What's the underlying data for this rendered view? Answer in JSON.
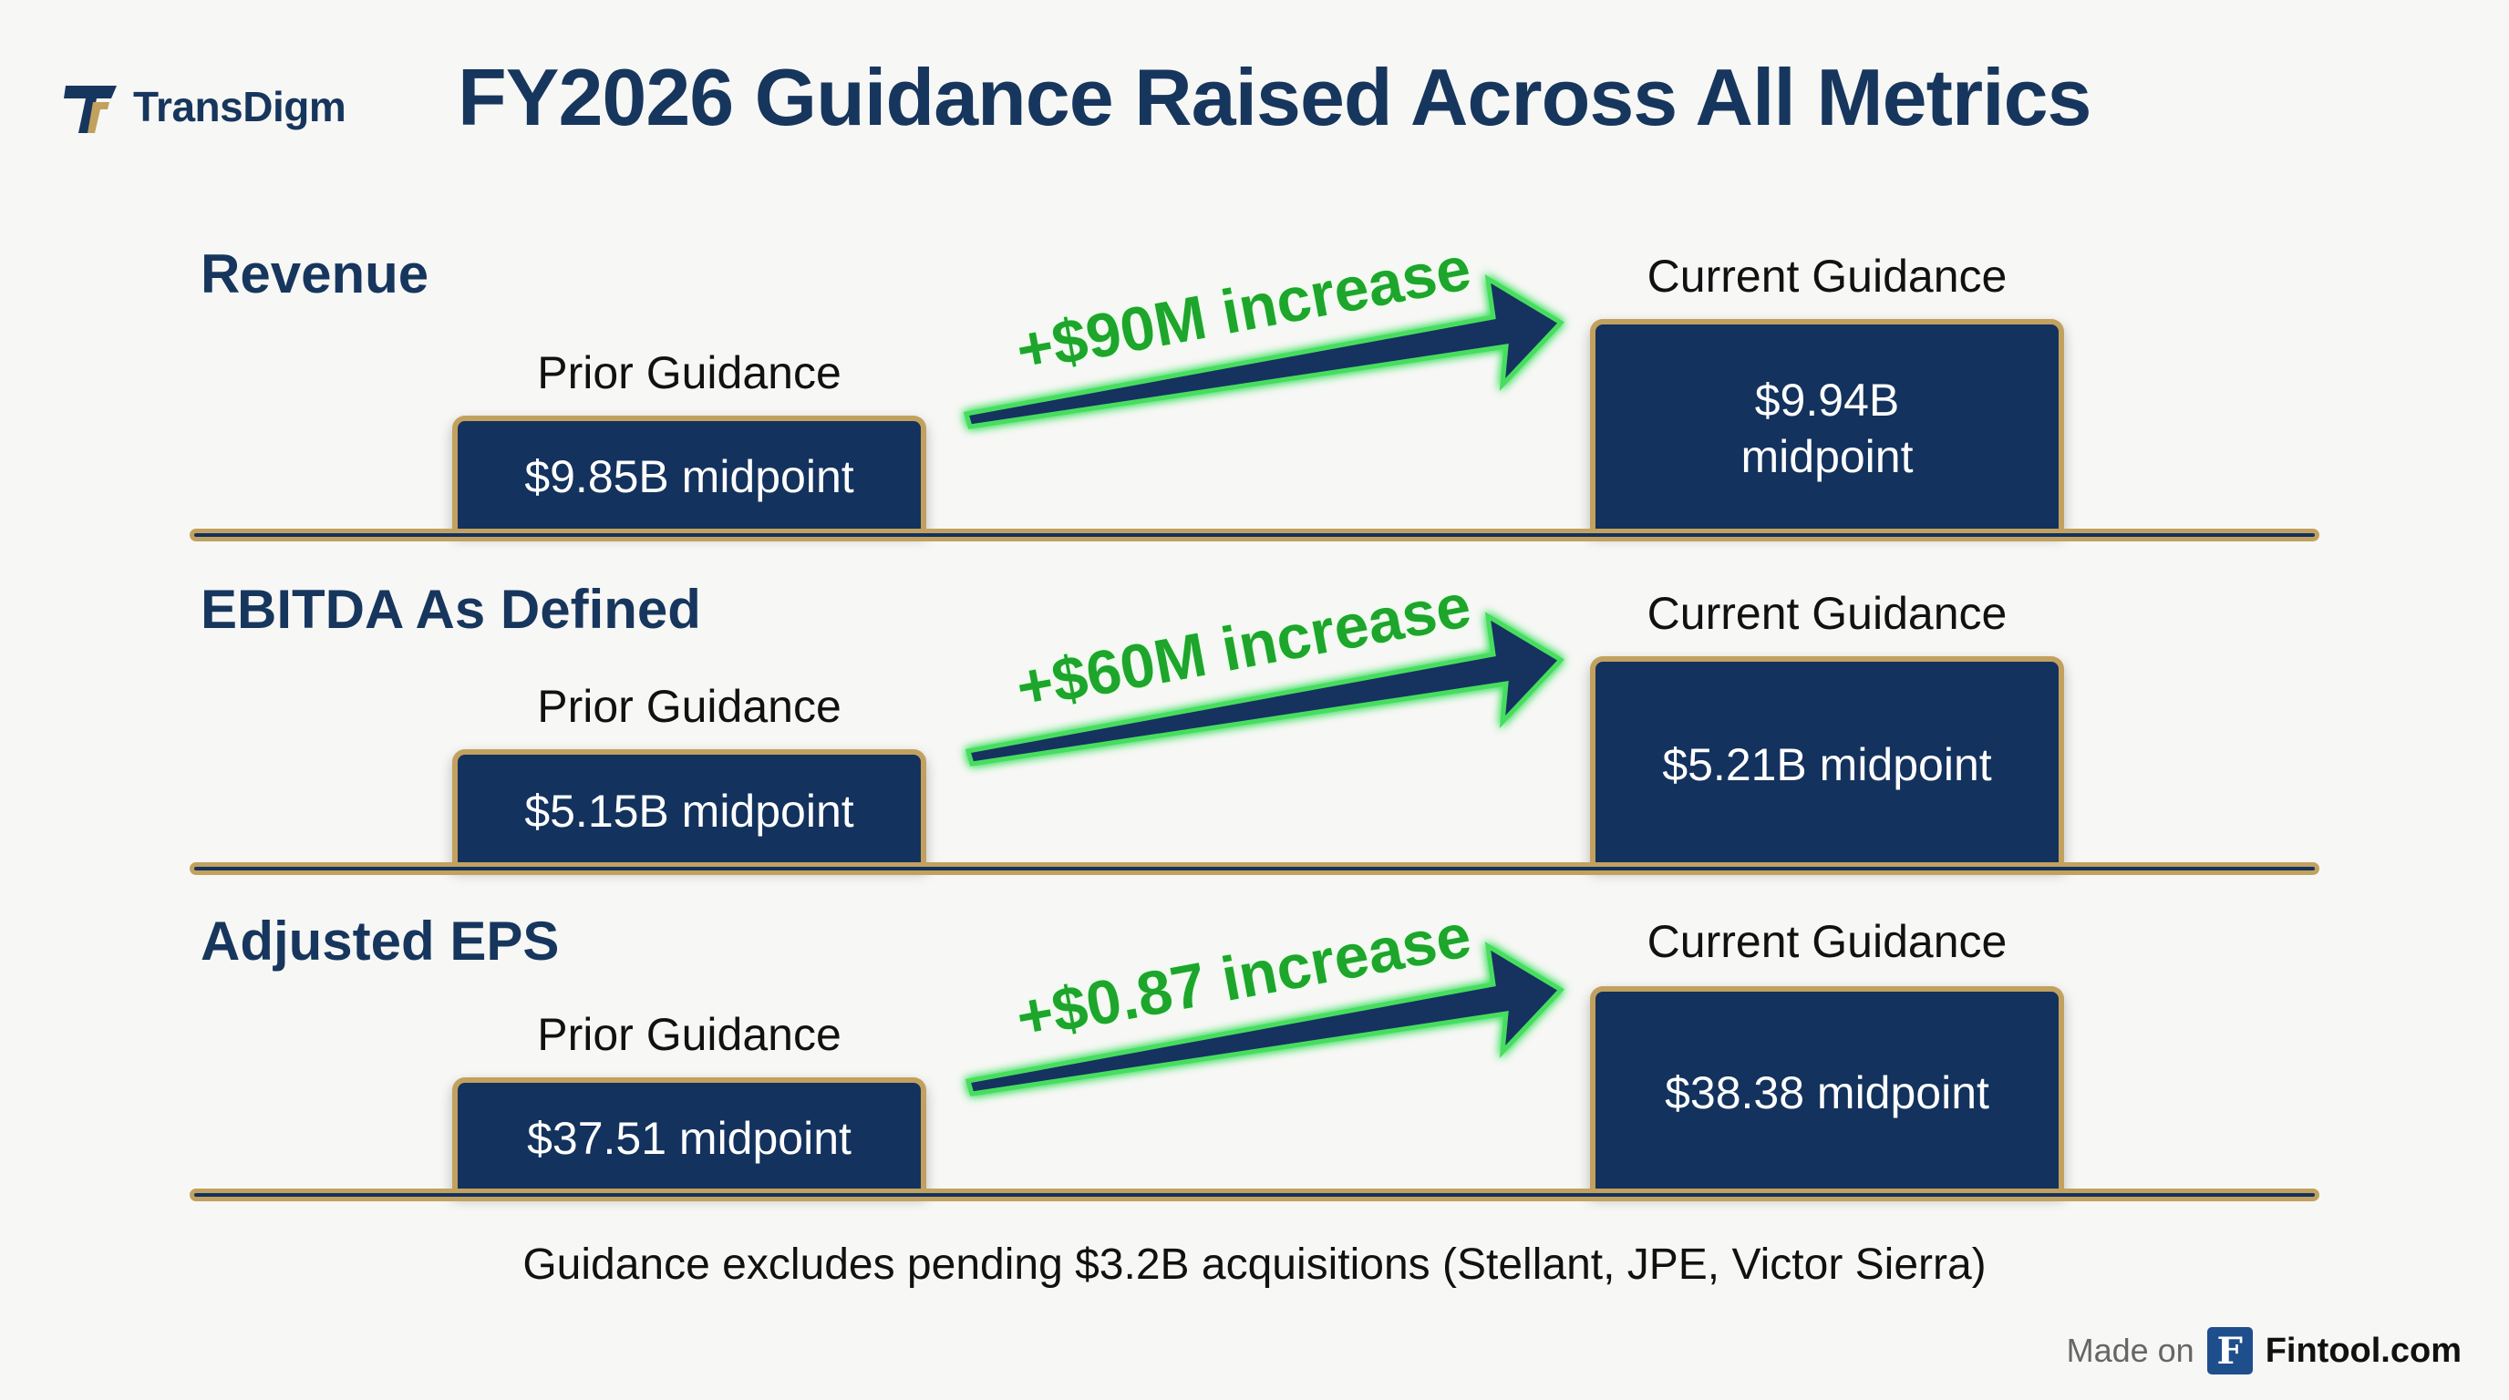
{
  "header": {
    "logo_text": "TransDigm",
    "title": "FY2026 Guidance Raised Across All Metrics"
  },
  "colors": {
    "navy": "#13325e",
    "gold": "#c2a15f",
    "increase_green": "#1ea52c",
    "background": "#f7f7f5"
  },
  "chart_data": {
    "type": "bar",
    "title": "FY2026 Guidance Raised Across All Metrics",
    "series_names": [
      "Prior Guidance",
      "Current Guidance"
    ],
    "metrics": [
      {
        "name": "Revenue",
        "prior_label": "Prior Guidance",
        "prior_value": 9.85,
        "prior_text": "$9.85B midpoint",
        "current_label": "Current Guidance",
        "current_value": 9.94,
        "current_text_line1": "$9.94B",
        "current_text_line2": "midpoint",
        "unit": "$B",
        "increase_text": "+$90M increase"
      },
      {
        "name": "EBITDA As Defined",
        "prior_label": "Prior Guidance",
        "prior_value": 5.15,
        "prior_text": "$5.15B midpoint",
        "current_label": "Current Guidance",
        "current_value": 5.21,
        "current_text": "$5.21B midpoint",
        "unit": "$B",
        "increase_text": "+$60M increase"
      },
      {
        "name": "Adjusted EPS",
        "prior_label": "Prior Guidance",
        "prior_value": 37.51,
        "prior_text": "$37.51 midpoint",
        "current_label": "Current Guidance",
        "current_value": 38.38,
        "current_text": "$38.38 midpoint",
        "unit": "$",
        "increase_text": "+$0.87 increase"
      }
    ]
  },
  "footnote": "Guidance excludes pending $3.2B acquisitions (Stellant, JPE, Victor Sierra)",
  "footer": {
    "made_on": "Made on",
    "brand_icon": "fintool-f-icon",
    "brand_letter": "F",
    "brand_name": "Fintool.com"
  }
}
